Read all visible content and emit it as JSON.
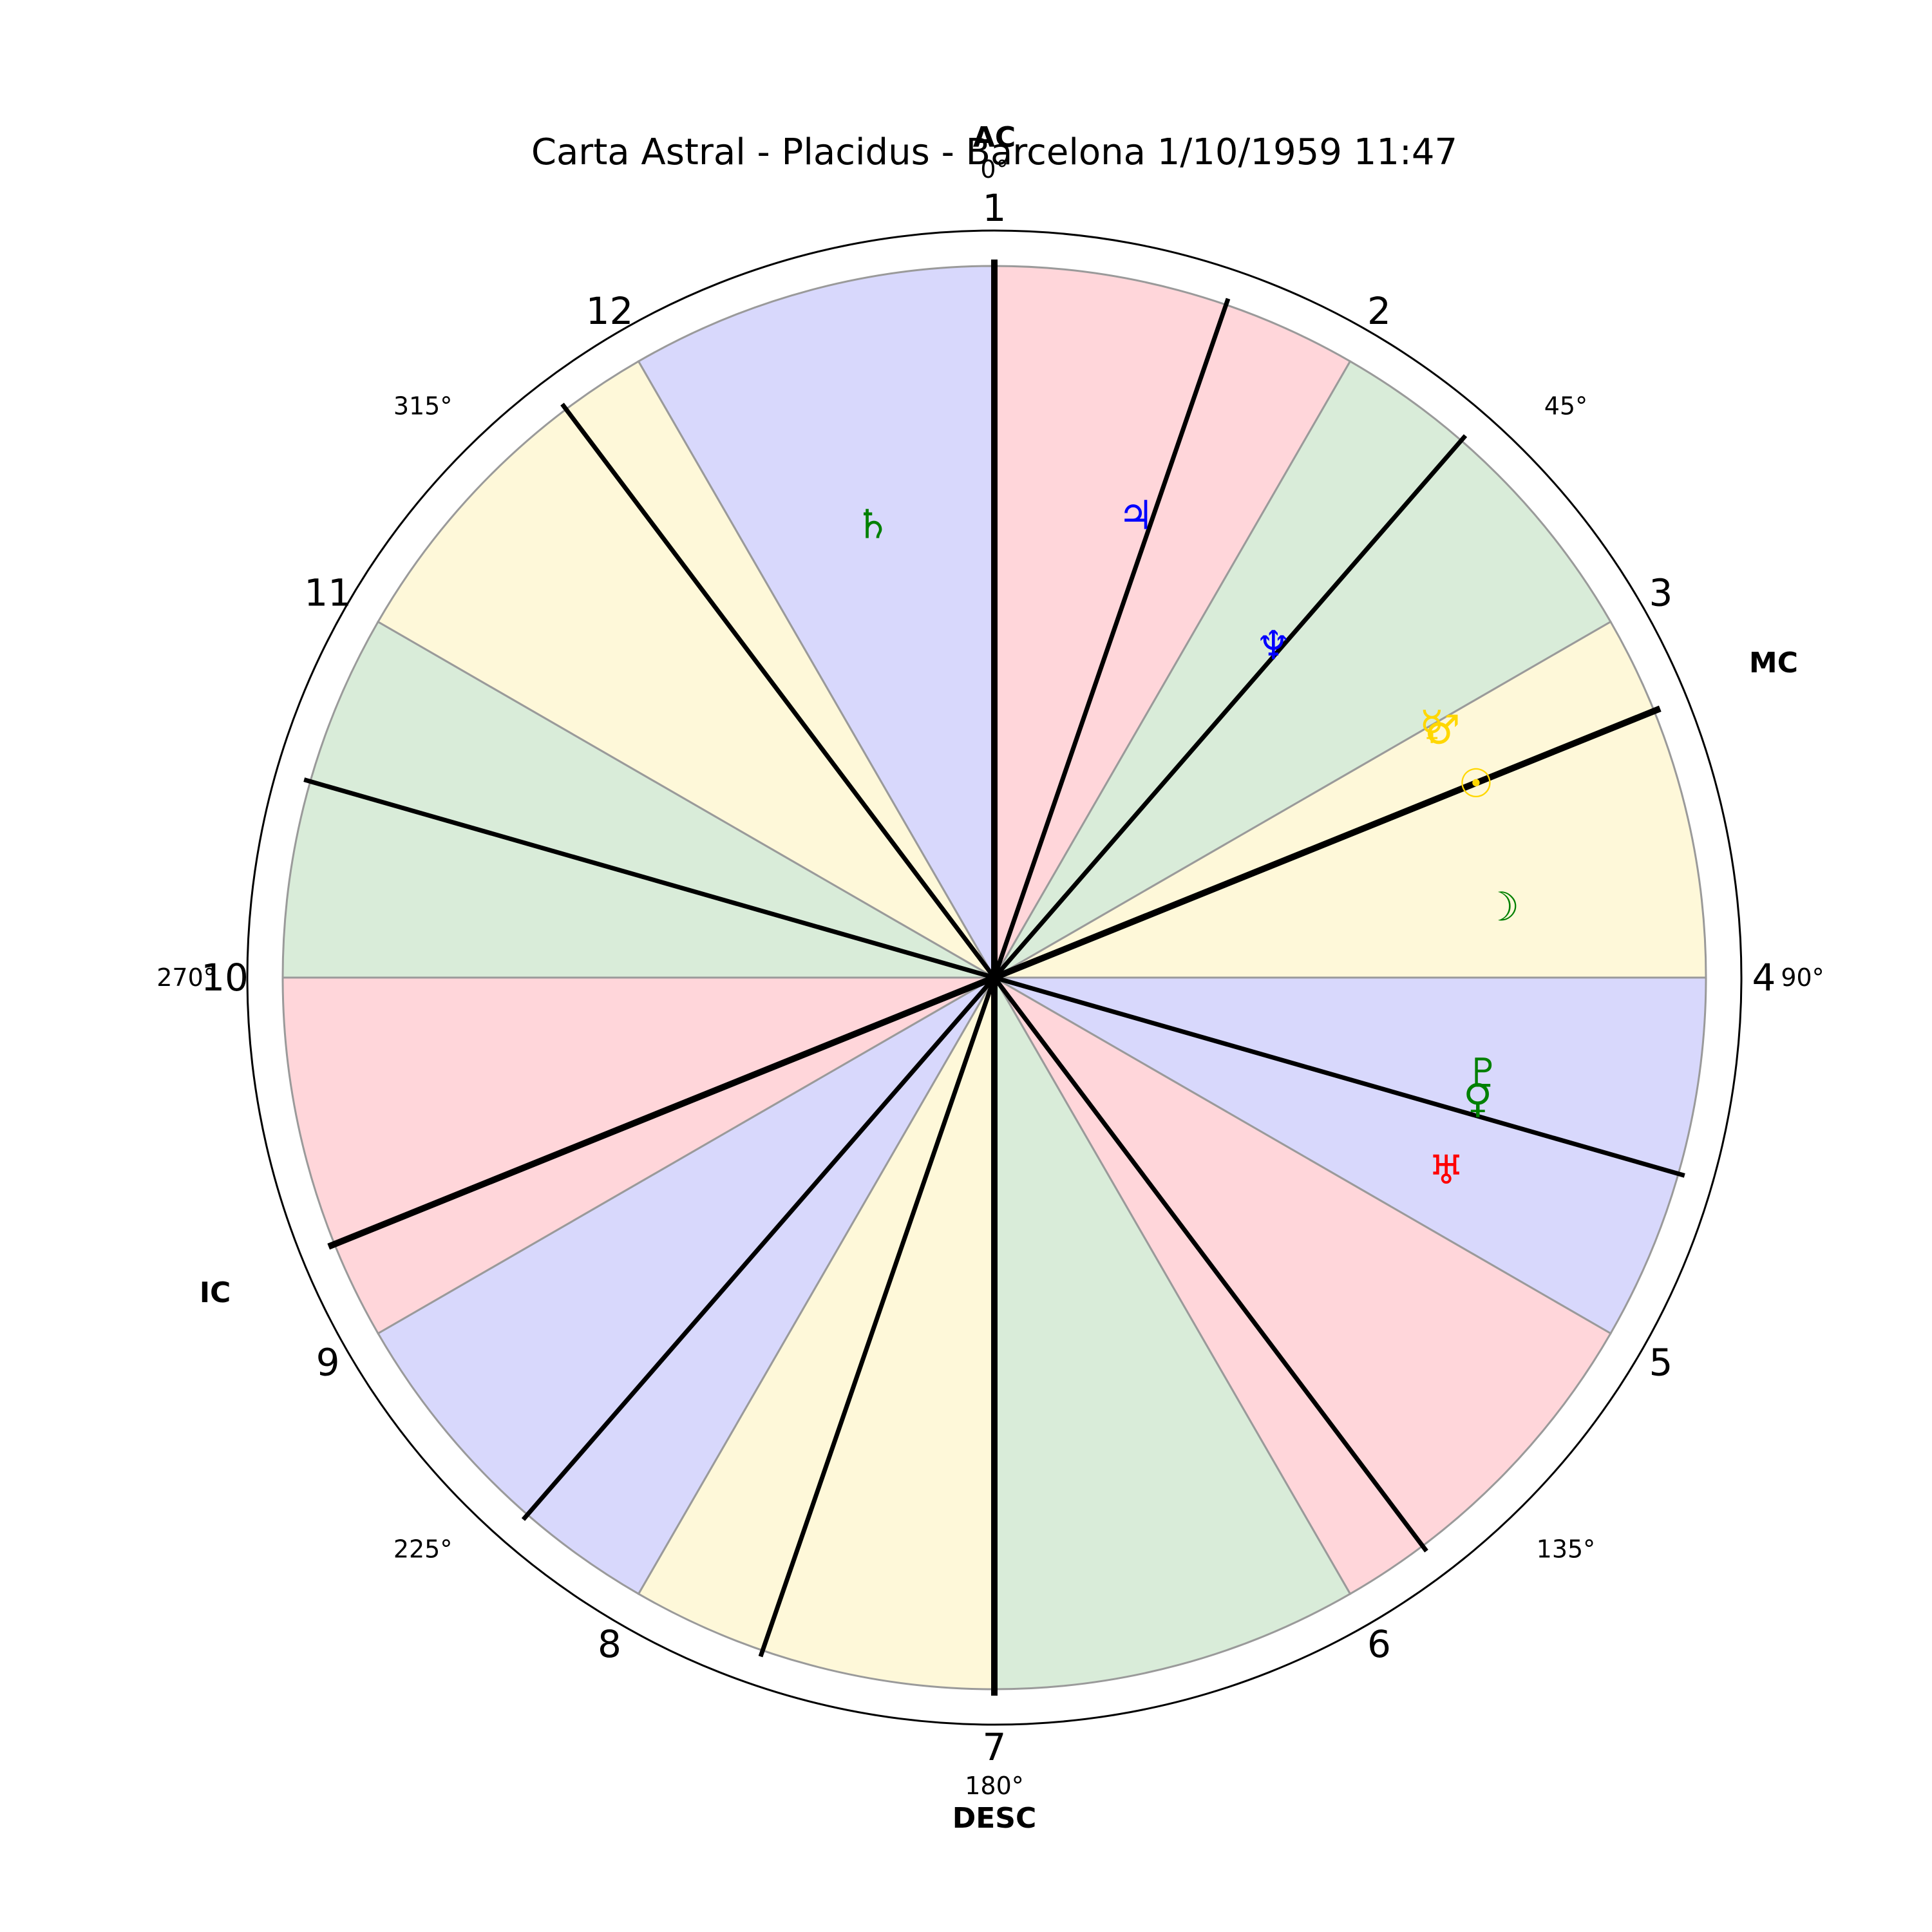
{
  "chart_data": {
    "type": "polar-wheel",
    "title": "Carta Astral - Placidus - Barcelona 1/10/1959 11:47",
    "zero_direction": "top",
    "direction": "clockwise",
    "degree_ticks": [
      {
        "angle": 0,
        "label": "0°"
      },
      {
        "angle": 45,
        "label": "45°"
      },
      {
        "angle": 90,
        "label": "90°"
      },
      {
        "angle": 135,
        "label": "135°"
      },
      {
        "angle": 180,
        "label": "180°"
      },
      {
        "angle": 225,
        "label": "225°"
      },
      {
        "angle": 270,
        "label": "270°"
      },
      {
        "angle": 315,
        "label": "315°"
      }
    ],
    "sign_sectors": [
      {
        "number": "1",
        "start": 0,
        "end": 30,
        "color": "#ffd6da"
      },
      {
        "number": "2",
        "start": 30,
        "end": 60,
        "color": "#d9ecd9"
      },
      {
        "number": "3",
        "start": 60,
        "end": 90,
        "color": "#fef8d9"
      },
      {
        "number": "4",
        "start": 90,
        "end": 120,
        "color": "#d8d8fc"
      },
      {
        "number": "5",
        "start": 120,
        "end": 150,
        "color": "#ffd6da"
      },
      {
        "number": "6",
        "start": 150,
        "end": 180,
        "color": "#d9ecd9"
      },
      {
        "number": "7",
        "start": 180,
        "end": 210,
        "color": "#fef8d9"
      },
      {
        "number": "8",
        "start": 210,
        "end": 240,
        "color": "#d8d8fc"
      },
      {
        "number": "9",
        "start": 240,
        "end": 270,
        "color": "#ffd6da"
      },
      {
        "number": "10",
        "start": 270,
        "end": 300,
        "color": "#d9ecd9"
      },
      {
        "number": "11",
        "start": 300,
        "end": 330,
        "color": "#fef8d9"
      },
      {
        "number": "12",
        "start": 330,
        "end": 360,
        "color": "#d8d8fc"
      }
    ],
    "house_cusps": [
      0,
      19,
      41,
      68,
      106,
      143,
      180,
      199,
      221,
      248,
      286,
      323
    ],
    "angles": [
      {
        "label": "AC",
        "angle": 0
      },
      {
        "label": "MC",
        "angle": 68
      },
      {
        "label": "DESC",
        "angle": 180
      },
      {
        "label": "IC",
        "angle": 248
      }
    ],
    "planets": [
      {
        "symbol": "♄",
        "angle": 345,
        "radius": 0.66,
        "color": "#008000"
      },
      {
        "symbol": "♃",
        "angle": 17,
        "radius": 0.68,
        "color": "#0000ff"
      },
      {
        "symbol": "♆",
        "angle": 40,
        "radius": 0.61,
        "color": "#0000ff"
      },
      {
        "symbol": "☿",
        "angle": 60,
        "radius": 0.71,
        "color": "#ffd700"
      },
      {
        "symbol": "♂",
        "angle": 61,
        "radius": 0.72,
        "color": "#ffd700"
      },
      {
        "symbol": "☉",
        "angle": 68,
        "radius": 0.73,
        "color": "#ffd700"
      },
      {
        "symbol": "☽",
        "angle": 82,
        "radius": 0.72,
        "color": "#008000"
      },
      {
        "symbol": "♇",
        "angle": 101,
        "radius": 0.7,
        "color": "#008000"
      },
      {
        "symbol": "♀",
        "angle": 104,
        "radius": 0.7,
        "color": "#008000"
      },
      {
        "symbol": "♅",
        "angle": 113,
        "radius": 0.69,
        "color": "#ff0000"
      }
    ]
  }
}
